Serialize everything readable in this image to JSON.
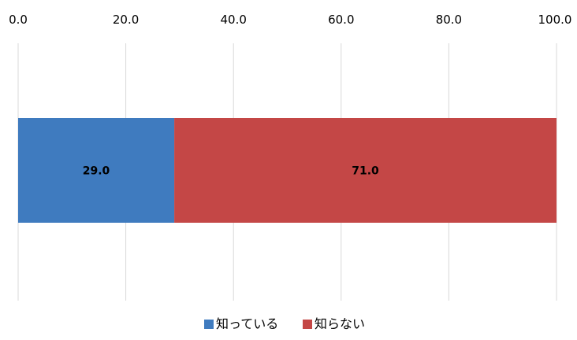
{
  "chart_data": {
    "type": "bar",
    "orientation": "horizontal",
    "stacked": true,
    "categories": [
      ""
    ],
    "series": [
      {
        "name": "知っている",
        "values": [
          29.0
        ],
        "color": "#3F7BBF"
      },
      {
        "name": "知らない",
        "values": [
          71.0
        ],
        "color": "#C44746"
      }
    ],
    "data_labels": [
      "29.0",
      "71.0"
    ],
    "xlim": [
      0,
      100
    ],
    "x_ticks": [
      "0.0",
      "20.0",
      "40.0",
      "60.0",
      "80.0",
      "100.0"
    ],
    "x_axis_position": "top",
    "grid": true,
    "legend": "bottom"
  }
}
